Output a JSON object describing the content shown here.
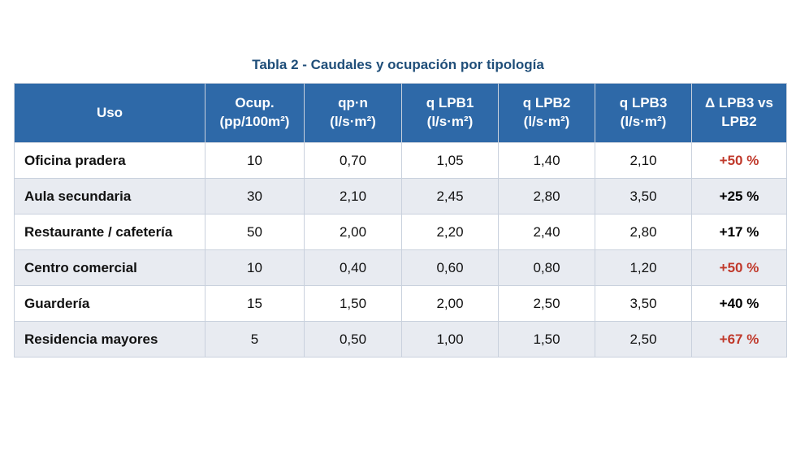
{
  "title": "Tabla 2 - Caudales y ocupación por tipología",
  "table": {
    "header": [
      "Uso",
      "Ocup. (pp/100m²)",
      "qp·n (l/s·m²)",
      "q LPB1 (l/s·m²)",
      "q LPB2 (l/s·m²)",
      "q LPB3 (l/s·m²)",
      "Δ LPB3 vs LPB2"
    ],
    "rows": [
      [
        "Oficina pradera",
        "10",
        "0,70",
        "1,05",
        "1,40",
        "2,10",
        "+50 %"
      ],
      [
        "Aula secundaria",
        "30",
        "2,10",
        "2,45",
        "2,80",
        "3,50",
        "+25 %"
      ],
      [
        "Restaurante / cafetería",
        "50",
        "2,00",
        "2,20",
        "2,40",
        "2,80",
        "+17 %"
      ],
      [
        "Centro comercial",
        "10",
        "0,40",
        "0,60",
        "0,80",
        "1,20",
        "+50 %"
      ],
      [
        "Guardería",
        "15",
        "1,50",
        "2,00",
        "2,50",
        "3,50",
        "+40 %"
      ],
      [
        "Residencia mayores",
        "5",
        "0,50",
        "1,00",
        "1,50",
        "2,50",
        "+67 %"
      ]
    ],
    "delta_colors": [
      "#c0392b",
      "#000000",
      "#000000",
      "#c0392b",
      "#000000",
      "#c0392b"
    ]
  }
}
